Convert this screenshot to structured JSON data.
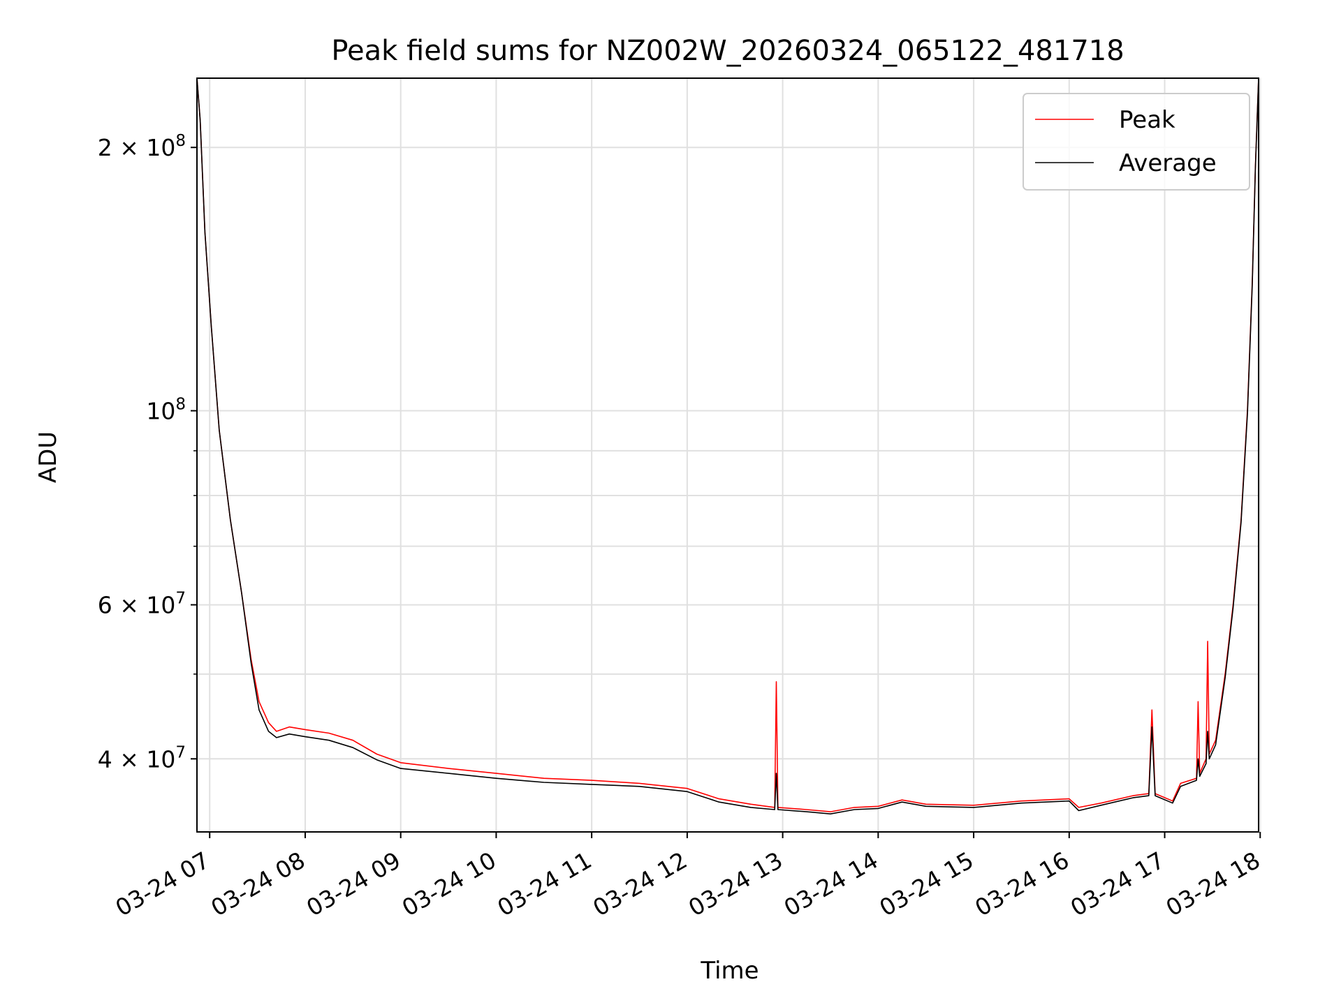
{
  "chart_data": {
    "type": "line",
    "title": "Peak field sums for NZ002W_20260324_065122_481718",
    "xlabel": "Time",
    "ylabel": "ADU",
    "yscale": "log",
    "xlim": [
      "2026-03-24T06:52",
      "2026-03-24T17:59"
    ],
    "ylim": [
      33000000,
      240000000
    ],
    "grid": true,
    "legend_position": "upper right",
    "x_ticks": [
      {
        "value": "2026-03-24T07:00",
        "label": "03-24 07"
      },
      {
        "value": "2026-03-24T08:00",
        "label": "03-24 08"
      },
      {
        "value": "2026-03-24T09:00",
        "label": "03-24 09"
      },
      {
        "value": "2026-03-24T10:00",
        "label": "03-24 10"
      },
      {
        "value": "2026-03-24T11:00",
        "label": "03-24 11"
      },
      {
        "value": "2026-03-24T12:00",
        "label": "03-24 12"
      },
      {
        "value": "2026-03-24T13:00",
        "label": "03-24 13"
      },
      {
        "value": "2026-03-24T14:00",
        "label": "03-24 14"
      },
      {
        "value": "2026-03-24T15:00",
        "label": "03-24 15"
      },
      {
        "value": "2026-03-24T16:00",
        "label": "03-24 16"
      },
      {
        "value": "2026-03-24T17:00",
        "label": "03-24 17"
      },
      {
        "value": "2026-03-24T18:00",
        "label": "03-24 18"
      }
    ],
    "y_major_ticks": [
      {
        "value": 40000000,
        "mant": "4",
        "exp": "7"
      },
      {
        "value": 60000000,
        "mant": "6",
        "exp": "7"
      },
      {
        "value": 100000000,
        "mant": "",
        "exp": "8"
      },
      {
        "value": 200000000,
        "mant": "2",
        "exp": "8"
      }
    ],
    "y_minor_ticks": [
      50000000,
      70000000,
      80000000,
      90000000
    ],
    "series": [
      {
        "name": "Peak",
        "color": "#ff0000",
        "points": [
          [
            "2026-03-24T06:52",
            240000000
          ],
          [
            "2026-03-24T06:54",
            215000000
          ],
          [
            "2026-03-24T06:57",
            160000000
          ],
          [
            "2026-03-24T07:01",
            125000000
          ],
          [
            "2026-03-24T07:06",
            95000000
          ],
          [
            "2026-03-24T07:13",
            75000000
          ],
          [
            "2026-03-24T07:20",
            62000000
          ],
          [
            "2026-03-24T07:26",
            52000000
          ],
          [
            "2026-03-24T07:31",
            46500000
          ],
          [
            "2026-03-24T07:37",
            44000000
          ],
          [
            "2026-03-24T07:42",
            43000000
          ],
          [
            "2026-03-24T07:50",
            43500000
          ],
          [
            "2026-03-24T08:00",
            43200000
          ],
          [
            "2026-03-24T08:15",
            42800000
          ],
          [
            "2026-03-24T08:30",
            42000000
          ],
          [
            "2026-03-24T08:45",
            40500000
          ],
          [
            "2026-03-24T09:00",
            39600000
          ],
          [
            "2026-03-24T09:30",
            39000000
          ],
          [
            "2026-03-24T10:00",
            38500000
          ],
          [
            "2026-03-24T10:30",
            38000000
          ],
          [
            "2026-03-24T11:00",
            37800000
          ],
          [
            "2026-03-24T11:30",
            37500000
          ],
          [
            "2026-03-24T12:00",
            37000000
          ],
          [
            "2026-03-24T12:20",
            36000000
          ],
          [
            "2026-03-24T12:40",
            35500000
          ],
          [
            "2026-03-24T12:55",
            35200000
          ],
          [
            "2026-03-24T12:56",
            49000000
          ],
          [
            "2026-03-24T12:57",
            35200000
          ],
          [
            "2026-03-24T13:15",
            35000000
          ],
          [
            "2026-03-24T13:30",
            34800000
          ],
          [
            "2026-03-24T13:45",
            35200000
          ],
          [
            "2026-03-24T14:00",
            35300000
          ],
          [
            "2026-03-24T14:15",
            35900000
          ],
          [
            "2026-03-24T14:30",
            35500000
          ],
          [
            "2026-03-24T15:00",
            35400000
          ],
          [
            "2026-03-24T15:30",
            35800000
          ],
          [
            "2026-03-24T16:00",
            36000000
          ],
          [
            "2026-03-24T16:06",
            35200000
          ],
          [
            "2026-03-24T16:20",
            35600000
          ],
          [
            "2026-03-24T16:40",
            36300000
          ],
          [
            "2026-03-24T16:50",
            36500000
          ],
          [
            "2026-03-24T16:52",
            45500000
          ],
          [
            "2026-03-24T16:54",
            36500000
          ],
          [
            "2026-03-24T17:05",
            35800000
          ],
          [
            "2026-03-24T17:10",
            37500000
          ],
          [
            "2026-03-24T17:20",
            38000000
          ],
          [
            "2026-03-24T17:21",
            46500000
          ],
          [
            "2026-03-24T17:22",
            38500000
          ],
          [
            "2026-03-24T17:26",
            40000000
          ],
          [
            "2026-03-24T17:27",
            54500000
          ],
          [
            "2026-03-24T17:28",
            40500000
          ],
          [
            "2026-03-24T17:32",
            42000000
          ],
          [
            "2026-03-24T17:38",
            50000000
          ],
          [
            "2026-03-24T17:43",
            60000000
          ],
          [
            "2026-03-24T17:48",
            75000000
          ],
          [
            "2026-03-24T17:52",
            100000000
          ],
          [
            "2026-03-24T17:55",
            140000000
          ],
          [
            "2026-03-24T17:57",
            190000000
          ],
          [
            "2026-03-24T17:59",
            240000000
          ]
        ]
      },
      {
        "name": "Average",
        "color": "#000000",
        "points": [
          [
            "2026-03-24T06:52",
            240000000
          ],
          [
            "2026-03-24T06:54",
            215000000
          ],
          [
            "2026-03-24T06:57",
            160000000
          ],
          [
            "2026-03-24T07:01",
            125000000
          ],
          [
            "2026-03-24T07:06",
            95000000
          ],
          [
            "2026-03-24T07:13",
            75000000
          ],
          [
            "2026-03-24T07:20",
            62000000
          ],
          [
            "2026-03-24T07:26",
            51500000
          ],
          [
            "2026-03-24T07:31",
            45500000
          ],
          [
            "2026-03-24T07:37",
            43000000
          ],
          [
            "2026-03-24T07:42",
            42300000
          ],
          [
            "2026-03-24T07:50",
            42700000
          ],
          [
            "2026-03-24T08:00",
            42400000
          ],
          [
            "2026-03-24T08:15",
            42000000
          ],
          [
            "2026-03-24T08:30",
            41200000
          ],
          [
            "2026-03-24T08:45",
            39900000
          ],
          [
            "2026-03-24T09:00",
            39000000
          ],
          [
            "2026-03-24T09:30",
            38500000
          ],
          [
            "2026-03-24T10:00",
            38000000
          ],
          [
            "2026-03-24T10:30",
            37600000
          ],
          [
            "2026-03-24T11:00",
            37400000
          ],
          [
            "2026-03-24T11:30",
            37200000
          ],
          [
            "2026-03-24T12:00",
            36700000
          ],
          [
            "2026-03-24T12:20",
            35700000
          ],
          [
            "2026-03-24T12:40",
            35200000
          ],
          [
            "2026-03-24T12:55",
            35000000
          ],
          [
            "2026-03-24T12:56",
            38500000
          ],
          [
            "2026-03-24T12:57",
            35000000
          ],
          [
            "2026-03-24T13:15",
            34800000
          ],
          [
            "2026-03-24T13:30",
            34600000
          ],
          [
            "2026-03-24T13:45",
            35000000
          ],
          [
            "2026-03-24T14:00",
            35100000
          ],
          [
            "2026-03-24T14:15",
            35700000
          ],
          [
            "2026-03-24T14:30",
            35300000
          ],
          [
            "2026-03-24T15:00",
            35200000
          ],
          [
            "2026-03-24T15:30",
            35600000
          ],
          [
            "2026-03-24T16:00",
            35800000
          ],
          [
            "2026-03-24T16:06",
            34900000
          ],
          [
            "2026-03-24T16:20",
            35400000
          ],
          [
            "2026-03-24T16:40",
            36100000
          ],
          [
            "2026-03-24T16:50",
            36300000
          ],
          [
            "2026-03-24T16:52",
            43500000
          ],
          [
            "2026-03-24T16:54",
            36300000
          ],
          [
            "2026-03-24T17:05",
            35600000
          ],
          [
            "2026-03-24T17:10",
            37200000
          ],
          [
            "2026-03-24T17:20",
            37800000
          ],
          [
            "2026-03-24T17:21",
            40000000
          ],
          [
            "2026-03-24T17:22",
            38200000
          ],
          [
            "2026-03-24T17:26",
            39500000
          ],
          [
            "2026-03-24T17:27",
            43000000
          ],
          [
            "2026-03-24T17:28",
            40000000
          ],
          [
            "2026-03-24T17:32",
            41500000
          ],
          [
            "2026-03-24T17:38",
            49500000
          ],
          [
            "2026-03-24T17:43",
            59500000
          ],
          [
            "2026-03-24T17:48",
            74500000
          ],
          [
            "2026-03-24T17:52",
            99000000
          ],
          [
            "2026-03-24T17:55",
            139000000
          ],
          [
            "2026-03-24T17:57",
            189000000
          ],
          [
            "2026-03-24T17:59",
            240000000
          ]
        ]
      }
    ]
  }
}
